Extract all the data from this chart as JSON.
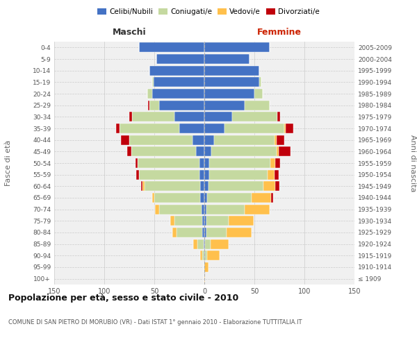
{
  "age_groups": [
    "100+",
    "95-99",
    "90-94",
    "85-89",
    "80-84",
    "75-79",
    "70-74",
    "65-69",
    "60-64",
    "55-59",
    "50-54",
    "45-49",
    "40-44",
    "35-39",
    "30-34",
    "25-29",
    "20-24",
    "15-19",
    "10-14",
    "5-9",
    "0-4"
  ],
  "birth_years": [
    "≤ 1909",
    "1910-1914",
    "1915-1919",
    "1920-1924",
    "1925-1929",
    "1930-1934",
    "1935-1939",
    "1940-1944",
    "1945-1949",
    "1950-1954",
    "1955-1959",
    "1960-1964",
    "1965-1969",
    "1970-1974",
    "1975-1979",
    "1980-1984",
    "1985-1989",
    "1990-1994",
    "1995-1999",
    "2000-2004",
    "2005-2009"
  ],
  "males": {
    "celibi": [
      0,
      0,
      0,
      1,
      2,
      2,
      3,
      4,
      4,
      5,
      5,
      8,
      12,
      25,
      30,
      45,
      52,
      51,
      55,
      48,
      65
    ],
    "coniugati": [
      0,
      1,
      2,
      6,
      26,
      28,
      42,
      46,
      56,
      60,
      62,
      65,
      63,
      60,
      42,
      10,
      5,
      1,
      0,
      0,
      0
    ],
    "vedovi": [
      0,
      0,
      2,
      4,
      4,
      4,
      4,
      2,
      2,
      0,
      0,
      0,
      0,
      0,
      0,
      0,
      0,
      0,
      0,
      0,
      0
    ],
    "divorziati": [
      0,
      0,
      0,
      0,
      0,
      0,
      0,
      0,
      1,
      3,
      2,
      4,
      8,
      3,
      3,
      1,
      0,
      0,
      0,
      0,
      0
    ]
  },
  "females": {
    "nubili": [
      0,
      0,
      1,
      1,
      2,
      2,
      2,
      3,
      4,
      5,
      5,
      7,
      10,
      20,
      28,
      40,
      50,
      55,
      55,
      45,
      65
    ],
    "coniugate": [
      0,
      0,
      2,
      5,
      20,
      22,
      38,
      44,
      55,
      58,
      61,
      65,
      60,
      60,
      45,
      25,
      8,
      2,
      0,
      0,
      0
    ],
    "vedove": [
      1,
      4,
      12,
      18,
      25,
      25,
      25,
      20,
      12,
      7,
      5,
      2,
      2,
      1,
      0,
      0,
      0,
      0,
      0,
      0,
      0
    ],
    "divorziate": [
      0,
      0,
      0,
      0,
      0,
      0,
      0,
      2,
      4,
      4,
      5,
      12,
      8,
      8,
      3,
      0,
      0,
      0,
      0,
      0,
      0
    ]
  },
  "colors": {
    "celibi": "#4472C4",
    "coniugati": "#C5D9A0",
    "vedovi": "#FFC04C",
    "divorziati": "#C0000B"
  },
  "title": "Popolazione per età, sesso e stato civile - 2010",
  "subtitle": "COMUNE DI SAN PIETRO DI MORUBIO (VR) - Dati ISTAT 1° gennaio 2010 - Elaborazione TUTTITALIA.IT",
  "xlabel_left": "Maschi",
  "xlabel_right": "Femmine",
  "ylabel_left": "Fasce di età",
  "ylabel_right": "Anni di nascita",
  "xlim": 150,
  "background_color": "#ffffff",
  "grid_color": "#bbbbbb",
  "legend_labels": [
    "Celibi/Nubili",
    "Coniugati/e",
    "Vedovi/e",
    "Divorziati/e"
  ]
}
